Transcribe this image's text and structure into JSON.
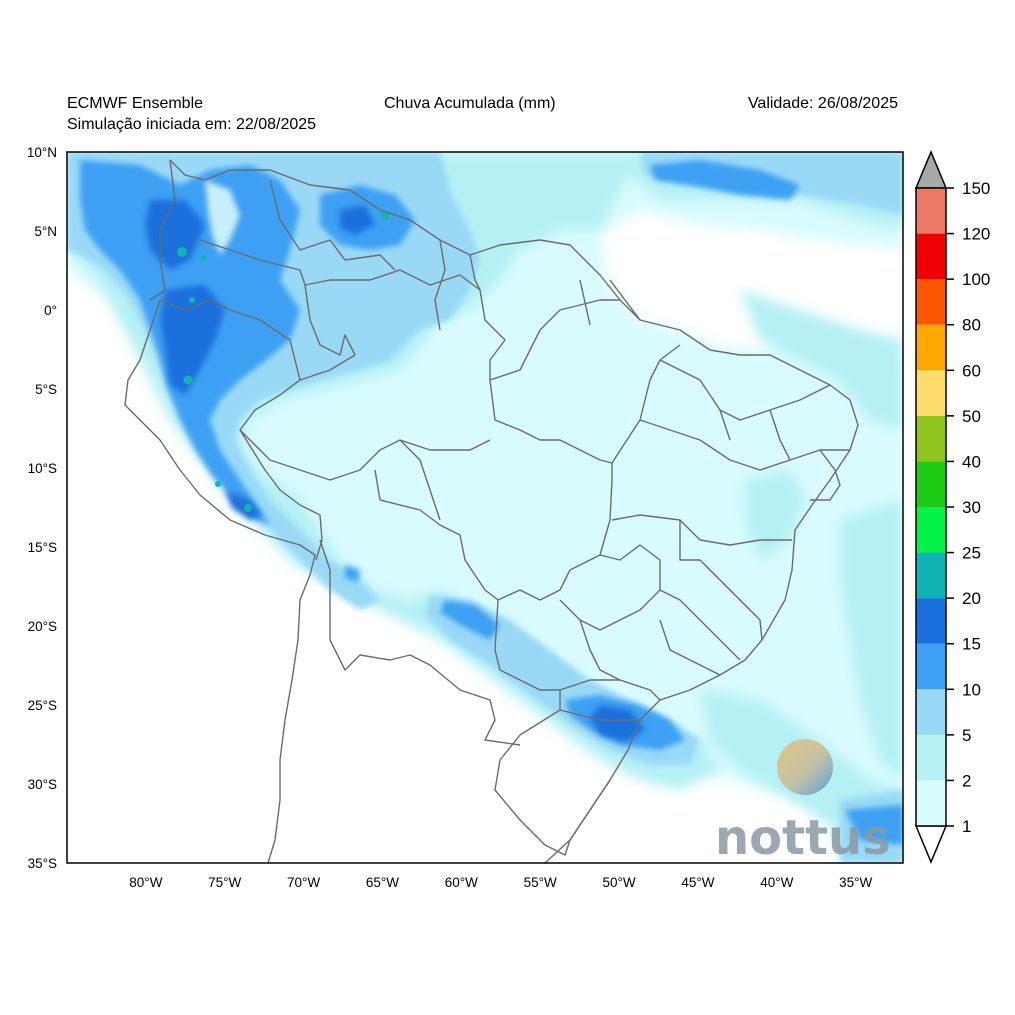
{
  "header": {
    "model": "ECMWF Ensemble",
    "init": "Simulação iniciada em: 22/08/2025",
    "variable": "Chuva Acumulada (mm)",
    "valid": "Validade: 26/08/2025"
  },
  "axes": {
    "lat_labels": [
      "10°N",
      "5°N",
      "0°",
      "5°S",
      "10°S",
      "15°S",
      "20°S",
      "25°S",
      "30°S",
      "35°S"
    ],
    "lon_labels": [
      "80°W",
      "75°W",
      "70°W",
      "65°W",
      "60°W",
      "55°W",
      "50°W",
      "45°W",
      "40°W",
      "35°W"
    ],
    "lat_range": [
      -35,
      10
    ],
    "lon_range": [
      -85,
      -32
    ]
  },
  "colorbar": {
    "levels": [
      "1",
      "2",
      "5",
      "10",
      "15",
      "20",
      "25",
      "30",
      "40",
      "50",
      "60",
      "80",
      "100",
      "120",
      "150"
    ],
    "colors": [
      "#d8fbfe",
      "#b4f0f4",
      "#9ad9f6",
      "#3ea0f3",
      "#1a6fdc",
      "#10b4b4",
      "#05f24a",
      "#1ecb14",
      "#8fc41c",
      "#fedd6c",
      "#fda800",
      "#fd5601",
      "#ef0101",
      "#ed7a66"
    ],
    "over_color": "#a8a8a8"
  },
  "brand": {
    "name": "nottus"
  }
}
